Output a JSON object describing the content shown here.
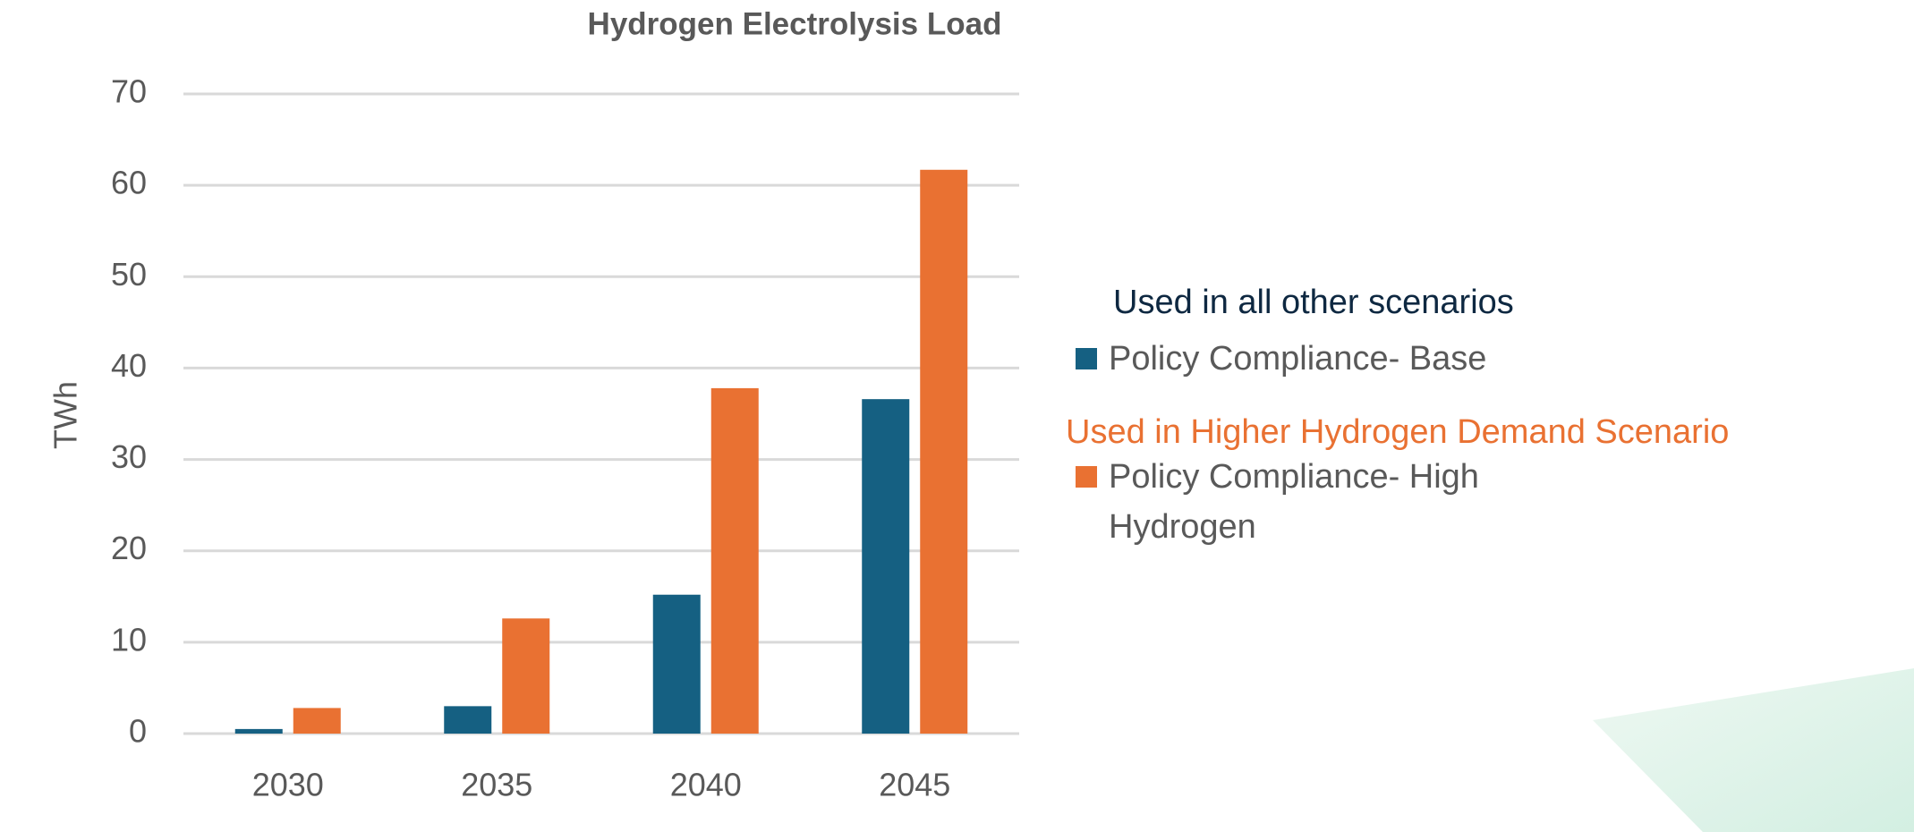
{
  "chart_data": {
    "type": "bar",
    "title": "Hydrogen Electrolysis Load",
    "y_label": "TWh",
    "categories": [
      "2030",
      "2035",
      "2040",
      "2045"
    ],
    "series": [
      {
        "name": "Policy Compliance- Base",
        "color": "#156082",
        "values": [
          0.5,
          3.0,
          15.2,
          36.6
        ]
      },
      {
        "name": "Policy Compliance- High Hydrogen",
        "color": "#e97132",
        "values": [
          2.8,
          12.6,
          37.8,
          61.7
        ]
      }
    ],
    "ylim": [
      0,
      70
    ],
    "yticks": [
      0,
      10,
      20,
      30,
      40,
      50,
      60,
      70
    ],
    "grid": true,
    "annotations": [
      {
        "text": "Used in all other scenarios",
        "color": "#0e2841"
      },
      {
        "text": "Used in Higher Hydrogen Demand Scenario",
        "color": "#e97132"
      }
    ]
  }
}
